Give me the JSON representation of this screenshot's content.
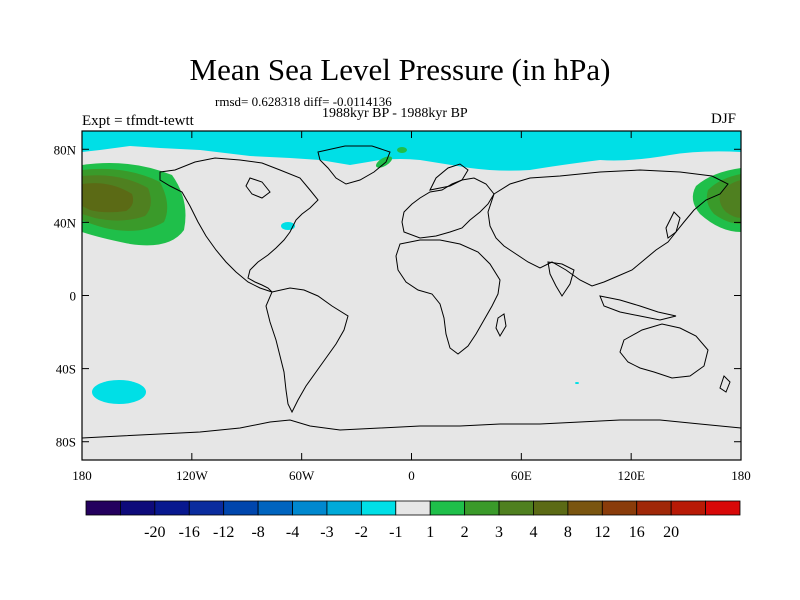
{
  "title": "Mean Sea Level Pressure (in hPa)",
  "stats_line": "rmsd= 0.628318  diff= -0.0114136",
  "period": "1988kyr BP - 1988kyr BP",
  "experiment_label": "Expt = tfmdt-tewtt",
  "season": "DJF",
  "map": {
    "background_color": "#e6e6e6",
    "lon_range": [
      -180,
      180
    ],
    "lat_range": [
      -90,
      90
    ],
    "x_ticks": [
      {
        "lon": -180,
        "label": "180"
      },
      {
        "lon": -120,
        "label": "120W"
      },
      {
        "lon": -60,
        "label": "60W"
      },
      {
        "lon": 0,
        "label": "0"
      },
      {
        "lon": 60,
        "label": "60E"
      },
      {
        "lon": 120,
        "label": "120E"
      },
      {
        "lon": 180,
        "label": "180"
      }
    ],
    "y_ticks": [
      {
        "lat": 80,
        "label": "80N"
      },
      {
        "lat": 40,
        "label": "40N"
      },
      {
        "lat": 0,
        "label": "0"
      },
      {
        "lat": -40,
        "label": "40S"
      },
      {
        "lat": -80,
        "label": "80S"
      }
    ],
    "anomaly_regions": [
      {
        "name": "arctic-negative",
        "level": "-2 to -1",
        "color": "#00dfe6"
      },
      {
        "name": "north-pacific-high-west",
        "levels": [
          "1 to 2",
          "2 to 3",
          "3 to 4",
          "4 to 8"
        ]
      },
      {
        "name": "north-pacific-high-east",
        "levels": [
          "1 to 2",
          "2 to 3",
          "3 to 4",
          "4 to 8"
        ]
      },
      {
        "name": "south-pacific-negative",
        "level": "-2 to -1",
        "color": "#00dfe6"
      },
      {
        "name": "atlantic-negative",
        "level": "-2 to -1",
        "color": "#00dfe6"
      },
      {
        "name": "greenland-positive",
        "level": "1 to 2",
        "color": "#1fbf4a"
      }
    ]
  },
  "colorbar": {
    "colors": [
      "#24005e",
      "#0e0a7a",
      "#08188f",
      "#0a2c9e",
      "#0046ad",
      "#0064bf",
      "#0088cf",
      "#00aad9",
      "#00dfe6",
      "#e6e6e6",
      "#1fbf4a",
      "#3a9a2a",
      "#4f8020",
      "#5b6a15",
      "#7a5510",
      "#8a3c0a",
      "#a02808",
      "#b81a06",
      "#d80808"
    ],
    "labels": [
      "-20",
      "-16",
      "-12",
      "-8",
      "-4",
      "-3",
      "-2",
      "-1",
      "1",
      "2",
      "3",
      "4",
      "8",
      "12",
      "16",
      "20"
    ]
  }
}
